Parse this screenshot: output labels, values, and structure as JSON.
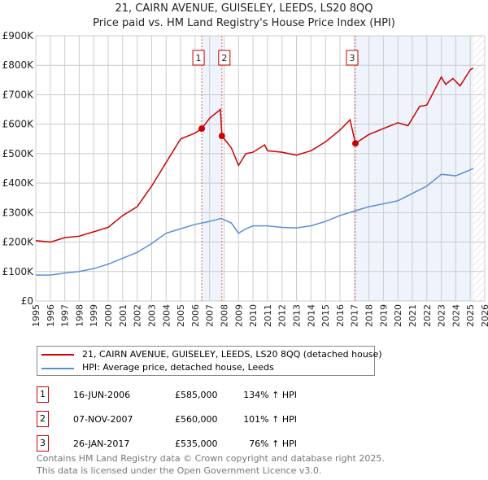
{
  "title": "21, CAIRN AVENUE, GUISELEY, LEEDS, LS20 8QQ",
  "subtitle": "Price paid vs. HM Land Registry's House Price Index (HPI)",
  "chart_data": {
    "type": "line",
    "title": "21, CAIRN AVENUE, GUISELEY, LEEDS, LS20 8QQ",
    "xlim": [
      1995,
      2026
    ],
    "ylim": [
      0,
      900000
    ],
    "x_ticks": [
      "1995",
      "1996",
      "1997",
      "1998",
      "1999",
      "2000",
      "2001",
      "2002",
      "2003",
      "2004",
      "2005",
      "2006",
      "2007",
      "2008",
      "2009",
      "2010",
      "2011",
      "2012",
      "2013",
      "2014",
      "2015",
      "2016",
      "2017",
      "2018",
      "2019",
      "2020",
      "2021",
      "2022",
      "2023",
      "2024",
      "2025",
      "2026"
    ],
    "y_ticks": [
      {
        "v": 0,
        "label": "£0"
      },
      {
        "v": 100000,
        "label": "£100K"
      },
      {
        "v": 200000,
        "label": "£200K"
      },
      {
        "v": 300000,
        "label": "£300K"
      },
      {
        "v": 400000,
        "label": "£400K"
      },
      {
        "v": 500000,
        "label": "£500K"
      },
      {
        "v": 600000,
        "label": "£600K"
      },
      {
        "v": 700000,
        "label": "£700K"
      },
      {
        "v": 800000,
        "label": "£800K"
      },
      {
        "v": 900000,
        "label": "£900K"
      }
    ],
    "series": [
      {
        "name": "21, CAIRN AVENUE, GUISELEY, LEEDS, LS20 8QQ (detached house)",
        "color": "#cc0000",
        "points": [
          [
            1995,
            205000
          ],
          [
            1996,
            200000
          ],
          [
            1997,
            215000
          ],
          [
            1998,
            220000
          ],
          [
            1999,
            235000
          ],
          [
            2000,
            250000
          ],
          [
            2001,
            290000
          ],
          [
            2002,
            320000
          ],
          [
            2003,
            390000
          ],
          [
            2004,
            470000
          ],
          [
            2005,
            550000
          ],
          [
            2006,
            570000
          ],
          [
            2006.46,
            585000
          ],
          [
            2007,
            620000
          ],
          [
            2007.75,
            650000
          ],
          [
            2007.85,
            560000
          ],
          [
            2008.5,
            520000
          ],
          [
            2009,
            460000
          ],
          [
            2009.5,
            500000
          ],
          [
            2010,
            505000
          ],
          [
            2010.8,
            530000
          ],
          [
            2011,
            510000
          ],
          [
            2012,
            505000
          ],
          [
            2013,
            495000
          ],
          [
            2014,
            510000
          ],
          [
            2015,
            540000
          ],
          [
            2016,
            580000
          ],
          [
            2016.7,
            615000
          ],
          [
            2017.07,
            535000
          ],
          [
            2018,
            565000
          ],
          [
            2019,
            585000
          ],
          [
            2020,
            605000
          ],
          [
            2020.7,
            595000
          ],
          [
            2021.5,
            660000
          ],
          [
            2022,
            665000
          ],
          [
            2023,
            760000
          ],
          [
            2023.3,
            735000
          ],
          [
            2023.8,
            755000
          ],
          [
            2024.3,
            730000
          ],
          [
            2025,
            785000
          ],
          [
            2025.2,
            790000
          ]
        ]
      },
      {
        "name": "HPI: Average price, detached house, Leeds",
        "color": "#5b8fd4",
        "points": [
          [
            1995,
            88000
          ],
          [
            1996,
            88000
          ],
          [
            1997,
            95000
          ],
          [
            1998,
            100000
          ],
          [
            1999,
            110000
          ],
          [
            2000,
            125000
          ],
          [
            2001,
            145000
          ],
          [
            2002,
            165000
          ],
          [
            2003,
            195000
          ],
          [
            2004,
            230000
          ],
          [
            2005,
            245000
          ],
          [
            2006,
            260000
          ],
          [
            2007,
            270000
          ],
          [
            2007.8,
            280000
          ],
          [
            2008.5,
            265000
          ],
          [
            2009,
            230000
          ],
          [
            2009.5,
            245000
          ],
          [
            2010,
            255000
          ],
          [
            2011,
            255000
          ],
          [
            2012,
            250000
          ],
          [
            2013,
            248000
          ],
          [
            2014,
            255000
          ],
          [
            2015,
            270000
          ],
          [
            2016,
            290000
          ],
          [
            2017,
            305000
          ],
          [
            2018,
            320000
          ],
          [
            2019,
            330000
          ],
          [
            2020,
            340000
          ],
          [
            2021,
            365000
          ],
          [
            2022,
            390000
          ],
          [
            2023,
            430000
          ],
          [
            2024,
            425000
          ],
          [
            2025,
            445000
          ],
          [
            2025.2,
            450000
          ]
        ]
      }
    ],
    "sales": [
      {
        "label": "1",
        "x": 2006.46,
        "y": 585000
      },
      {
        "label": "2",
        "x": 2007.85,
        "y": 560000
      },
      {
        "label": "3",
        "x": 2017.07,
        "y": 535000
      }
    ],
    "shaded": [
      [
        2006.46,
        2007.85
      ],
      [
        2017.07,
        2025.2
      ]
    ],
    "hatch_from": 2025.2
  },
  "legend": {
    "property": "21, CAIRN AVENUE, GUISELEY, LEEDS, LS20 8QQ (detached house)",
    "hpi": "HPI: Average price, detached house, Leeds"
  },
  "transactions": [
    {
      "num": "1",
      "date": "16-JUN-2006",
      "price": "£585,000",
      "hpi": "134% ↑ HPI"
    },
    {
      "num": "2",
      "date": "07-NOV-2007",
      "price": "£560,000",
      "hpi": "101% ↑ HPI"
    },
    {
      "num": "3",
      "date": "26-JAN-2017",
      "price": "£535,000",
      "hpi": "76% ↑ HPI"
    }
  ],
  "footer": [
    "Contains HM Land Registry data © Crown copyright and database right 2025.",
    "This data is licensed under the Open Government Licence v3.0."
  ]
}
